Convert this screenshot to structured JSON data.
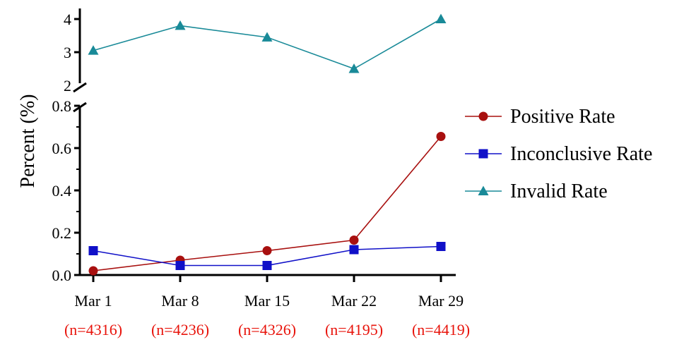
{
  "chart_data": {
    "type": "line",
    "ylabel": "Percent  (%)",
    "xlabel": "",
    "categories": [
      "Mar 1",
      "Mar 8",
      "Mar 15",
      "Mar 22",
      "Mar 29"
    ],
    "sample_sizes": [
      "(n=4316)",
      "(n=4236)",
      "(n=4326)",
      "(n=4195)",
      "(n=4419)"
    ],
    "y_axis_break": true,
    "y_lower_segment": {
      "range": [
        0,
        0.8
      ],
      "ticks": [
        "0.0",
        "0.2",
        "0.4",
        "0.6",
        "0.8"
      ]
    },
    "y_upper_segment": {
      "range": [
        2,
        4
      ],
      "ticks": [
        "2",
        "3",
        "4"
      ]
    },
    "legend_position": "right",
    "series": [
      {
        "name": "Positive Rate",
        "marker": "circle",
        "color": "#a8100f",
        "values": [
          0.02,
          0.07,
          0.115,
          0.165,
          0.655
        ]
      },
      {
        "name": "Inconclusive Rate",
        "marker": "square",
        "color": "#1010c8",
        "values": [
          0.115,
          0.045,
          0.045,
          0.12,
          0.135
        ]
      },
      {
        "name": "Invalid Rate",
        "marker": "triangle",
        "color": "#198a98",
        "values": [
          3.05,
          3.8,
          3.45,
          2.5,
          4.0
        ]
      }
    ]
  }
}
